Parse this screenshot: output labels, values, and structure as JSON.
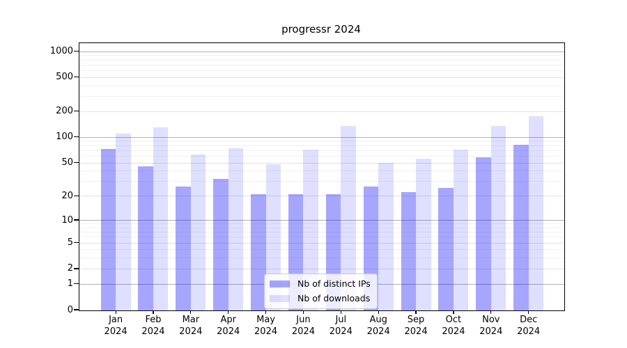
{
  "title": "progressr 2024",
  "legend": {
    "position": "lower center",
    "items": [
      {
        "label": "Nb of distinct IPs",
        "rendered_hex": "#a6a6fa"
      },
      {
        "label": "Nb of downloads",
        "rendered_hex": "#dedefc"
      }
    ]
  },
  "colors": {
    "bar_base": "#0000ff",
    "grid_major": "#b0b0b0",
    "grid_mid": "#e2e2e2",
    "grid_minor": "#f1f1f1",
    "spine": "#000000",
    "background": "#ffffff"
  },
  "chart_data": {
    "type": "bar",
    "title": "progressr 2024",
    "xlabel": "",
    "ylabel": "",
    "yscale": "log1p",
    "grid": true,
    "ylim": [
      0,
      1280
    ],
    "y_ticks": [
      0,
      1,
      2,
      5,
      10,
      20,
      50,
      100,
      200,
      500,
      1000
    ],
    "y_grid_major": [
      1,
      10,
      100,
      1000
    ],
    "y_grid_mid": [
      2,
      5,
      20,
      50,
      200,
      500
    ],
    "y_grid_minor": [
      3,
      4,
      6,
      7,
      8,
      9,
      30,
      40,
      60,
      70,
      80,
      90,
      300,
      400,
      600,
      700,
      800,
      900
    ],
    "categories": [
      "Jan 2024",
      "Feb 2024",
      "Mar 2024",
      "Apr 2024",
      "May 2024",
      "Jun 2024",
      "Jul 2024",
      "Aug 2024",
      "Sep 2024",
      "Oct 2024",
      "Nov 2024",
      "Dec 2024"
    ],
    "series": [
      {
        "name": "Nb of distinct IPs",
        "color": "#0000ff",
        "alpha": 0.35,
        "values": [
          73,
          45,
          26,
          32,
          21,
          21,
          21,
          26,
          22,
          25,
          58,
          81
        ]
      },
      {
        "name": "Nb of downloads",
        "color": "#0000ff",
        "alpha": 0.125,
        "values": [
          110,
          130,
          62,
          74,
          48,
          71,
          135,
          50,
          56,
          71,
          134,
          175
        ]
      }
    ]
  }
}
